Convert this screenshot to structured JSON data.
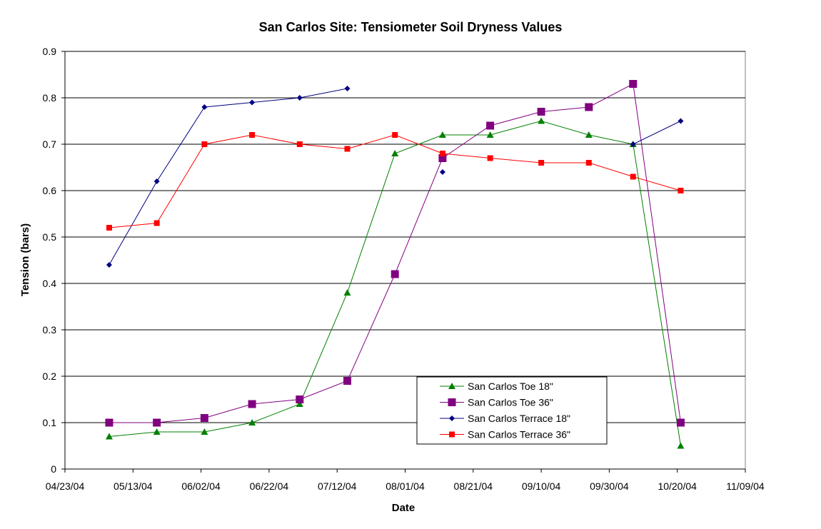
{
  "chart_data": {
    "type": "line",
    "title": "San Carlos Site: Tensiometer Soil Dryness Values",
    "xlabel": "Date",
    "ylabel": "Tension (bars)",
    "xlim": [
      "2004-04-23",
      "2004-11-09"
    ],
    "ylim": [
      0,
      0.9
    ],
    "x_ticks": [
      "04/23/04",
      "05/13/04",
      "06/02/04",
      "06/22/04",
      "07/12/04",
      "08/01/04",
      "08/21/04",
      "09/10/04",
      "09/30/04",
      "10/20/04",
      "11/09/04"
    ],
    "y_ticks": [
      "0",
      "0.1",
      "0.2",
      "0.3",
      "0.4",
      "0.5",
      "0.6",
      "0.7",
      "0.8",
      "0.9"
    ],
    "grid": "horizontal",
    "legend_position": "bottom-right",
    "series": [
      {
        "name": "San Carlos Toe 18\"",
        "color": "#008000",
        "marker": "triangle",
        "points": [
          [
            "2004-05-06",
            0.07
          ],
          [
            "2004-05-20",
            0.08
          ],
          [
            "2004-06-03",
            0.08
          ],
          [
            "2004-06-17",
            0.1
          ],
          [
            "2004-07-01",
            0.14
          ],
          [
            "2004-07-15",
            0.38
          ],
          [
            "2004-07-29",
            0.68
          ],
          [
            "2004-08-12",
            0.72
          ],
          [
            "2004-08-26",
            0.72
          ],
          [
            "2004-09-10",
            0.75
          ],
          [
            "2004-09-24",
            0.72
          ],
          [
            "2004-10-07",
            0.7
          ],
          [
            "2004-10-21",
            0.05
          ]
        ]
      },
      {
        "name": "San Carlos Toe 36\"",
        "color": "#800080",
        "marker": "square-large",
        "points": [
          [
            "2004-05-06",
            0.1
          ],
          [
            "2004-05-20",
            0.1
          ],
          [
            "2004-06-03",
            0.11
          ],
          [
            "2004-06-17",
            0.14
          ],
          [
            "2004-07-01",
            0.15
          ],
          [
            "2004-07-15",
            0.19
          ],
          [
            "2004-07-29",
            0.42
          ],
          [
            "2004-08-12",
            0.67
          ],
          [
            "2004-08-26",
            0.74
          ],
          [
            "2004-09-10",
            0.77
          ],
          [
            "2004-09-24",
            0.78
          ],
          [
            "2004-10-07",
            0.83
          ],
          [
            "2004-10-21",
            0.1
          ]
        ]
      },
      {
        "name": "San Carlos Terrace 18\"",
        "color": "#000080",
        "marker": "diamond",
        "segments": [
          [
            [
              "2004-05-06",
              0.44
            ],
            [
              "2004-05-20",
              0.62
            ],
            [
              "2004-06-03",
              0.78
            ],
            [
              "2004-06-17",
              0.79
            ],
            [
              "2004-07-01",
              0.8
            ],
            [
              "2004-07-15",
              0.82
            ]
          ],
          [
            [
              "2004-08-12",
              0.64
            ]
          ],
          [
            [
              "2004-10-07",
              0.7
            ],
            [
              "2004-10-21",
              0.75
            ]
          ]
        ]
      },
      {
        "name": "San Carlos Terrace 36\"",
        "color": "#ff0000",
        "marker": "square",
        "points": [
          [
            "2004-05-06",
            0.52
          ],
          [
            "2004-05-20",
            0.53
          ],
          [
            "2004-06-03",
            0.7
          ],
          [
            "2004-06-17",
            0.72
          ],
          [
            "2004-07-01",
            0.7
          ],
          [
            "2004-07-15",
            0.69
          ],
          [
            "2004-07-29",
            0.72
          ],
          [
            "2004-08-12",
            0.68
          ],
          [
            "2004-08-26",
            0.67
          ],
          [
            "2004-09-10",
            0.66
          ],
          [
            "2004-09-24",
            0.66
          ],
          [
            "2004-10-07",
            0.63
          ],
          [
            "2004-10-21",
            0.6
          ]
        ]
      }
    ]
  }
}
